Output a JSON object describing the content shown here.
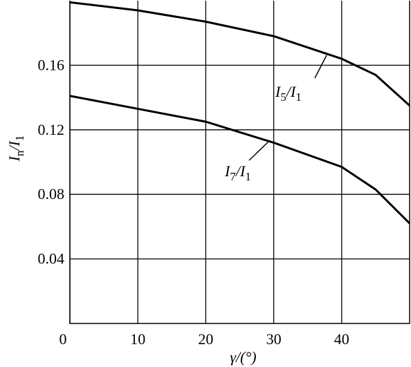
{
  "chart_data": {
    "type": "line",
    "x_label": "γ/(°)",
    "y_label": "In/I1",
    "x": [
      0,
      10,
      20,
      30,
      40,
      45,
      50
    ],
    "series": [
      {
        "name": "I5/I1",
        "color": "#000000",
        "values": [
          0.199,
          0.194,
          0.187,
          0.178,
          0.164,
          0.154,
          0.135
        ]
      },
      {
        "name": "I7/I1",
        "color": "#000000",
        "values": [
          0.141,
          0.133,
          0.125,
          0.112,
          0.097,
          0.083,
          0.062
        ]
      }
    ],
    "xlim": [
      0,
      50
    ],
    "xticks": [
      0,
      10,
      20,
      30,
      40
    ],
    "ylim": [
      0,
      0.2
    ],
    "yticks": [
      0.04,
      0.08,
      0.12,
      0.16
    ],
    "grid": true
  }
}
